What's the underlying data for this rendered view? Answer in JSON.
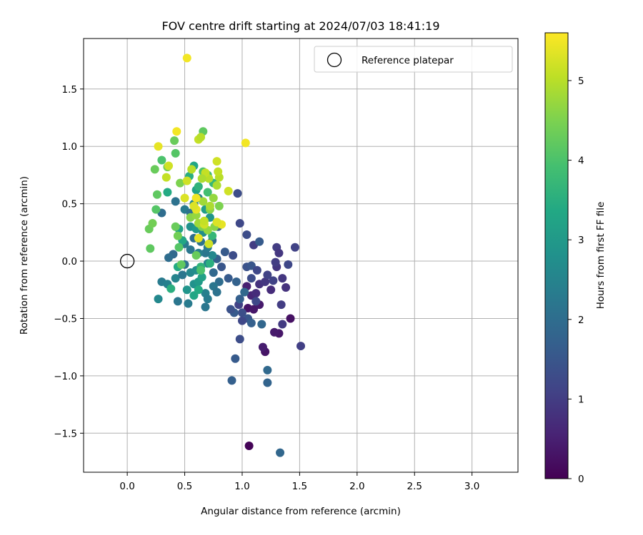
{
  "chart_data": {
    "type": "scatter",
    "title": "FOV centre drift starting at 2024/07/03 18:41:19",
    "xlabel": "Angular distance from reference (arcmin)",
    "ylabel": "Rotation from reference (arcmin)",
    "xlim": [
      -0.38,
      3.4
    ],
    "ylim": [
      -1.84,
      1.94
    ],
    "xticks": [
      0.0,
      0.5,
      1.0,
      1.5,
      2.0,
      2.5,
      3.0
    ],
    "xtick_labels": [
      "0.0",
      "0.5",
      "1.0",
      "1.5",
      "2.0",
      "2.5",
      "3.0"
    ],
    "yticks": [
      1.5,
      1.0,
      0.5,
      0.0,
      -0.5,
      -1.0,
      -1.5
    ],
    "ytick_labels": [
      "1.5",
      "1.0",
      "0.5",
      "0.0",
      "−0.5",
      "−1.0",
      "−1.5"
    ],
    "grid": true,
    "legend": {
      "position": "top-right",
      "entries": [
        "Reference platepar"
      ]
    },
    "reference_point": {
      "x": 0.0,
      "y": 0.0
    },
    "colorbar": {
      "label": "Hours from first FF file",
      "range": [
        0,
        5.6
      ],
      "colormap": "viridis",
      "ticks": [
        0,
        1,
        2,
        3,
        4,
        5
      ],
      "tick_labels": [
        "0",
        "1",
        "2",
        "3",
        "4",
        "5"
      ]
    },
    "series": [
      {
        "points": [
          {
            "x": 1.06,
            "y": -1.61,
            "c": 0.05
          },
          {
            "x": 1.32,
            "y": -0.63,
            "c": 0.35
          },
          {
            "x": 1.28,
            "y": -0.62,
            "c": 0.4
          },
          {
            "x": 1.42,
            "y": -0.5,
            "c": 0.25
          },
          {
            "x": 1.2,
            "y": -0.79,
            "c": 0.3
          },
          {
            "x": 1.18,
            "y": -0.75,
            "c": 0.45
          },
          {
            "x": 1.05,
            "y": -0.41,
            "c": 0.3
          },
          {
            "x": 1.1,
            "y": -0.42,
            "c": 0.35
          },
          {
            "x": 1.15,
            "y": -0.38,
            "c": 0.4
          },
          {
            "x": 1.04,
            "y": -0.22,
            "c": 0.5
          },
          {
            "x": 1.08,
            "y": -0.3,
            "c": 0.6
          },
          {
            "x": 1.12,
            "y": -0.28,
            "c": 0.7
          },
          {
            "x": 1.15,
            "y": -0.2,
            "c": 0.8
          },
          {
            "x": 1.2,
            "y": -0.18,
            "c": 0.9
          },
          {
            "x": 1.25,
            "y": -0.25,
            "c": 0.7
          },
          {
            "x": 1.3,
            "y": -0.05,
            "c": 0.85
          },
          {
            "x": 1.35,
            "y": -0.15,
            "c": 0.9
          },
          {
            "x": 1.38,
            "y": -0.23,
            "c": 0.8
          },
          {
            "x": 1.34,
            "y": -0.38,
            "c": 1.0
          },
          {
            "x": 1.35,
            "y": -0.55,
            "c": 0.95
          },
          {
            "x": 1.4,
            "y": -0.03,
            "c": 1.2
          },
          {
            "x": 1.46,
            "y": 0.12,
            "c": 1.1
          },
          {
            "x": 1.51,
            "y": -0.74,
            "c": 1.05
          },
          {
            "x": 1.3,
            "y": 0.12,
            "c": 1.0
          },
          {
            "x": 1.32,
            "y": 0.07,
            "c": 0.9
          },
          {
            "x": 1.29,
            "y": -0.01,
            "c": 1.0
          },
          {
            "x": 1.22,
            "y": -0.12,
            "c": 1.1
          },
          {
            "x": 1.27,
            "y": -0.17,
            "c": 1.1
          },
          {
            "x": 1.1,
            "y": 0.14,
            "c": 1.0
          },
          {
            "x": 1.15,
            "y": 0.17,
            "c": 1.6
          },
          {
            "x": 1.04,
            "y": 0.23,
            "c": 1.3
          },
          {
            "x": 0.98,
            "y": 0.33,
            "c": 1.2
          },
          {
            "x": 0.96,
            "y": 0.59,
            "c": 1.3
          },
          {
            "x": 1.04,
            "y": -0.05,
            "c": 1.4
          },
          {
            "x": 1.08,
            "y": -0.04,
            "c": 1.5
          },
          {
            "x": 1.13,
            "y": -0.08,
            "c": 1.2
          },
          {
            "x": 1.08,
            "y": -0.15,
            "c": 1.3
          },
          {
            "x": 1.12,
            "y": -0.35,
            "c": 1.2
          },
          {
            "x": 1.0,
            "y": -0.45,
            "c": 1.35
          },
          {
            "x": 1.05,
            "y": -0.5,
            "c": 1.5
          },
          {
            "x": 0.97,
            "y": -0.38,
            "c": 1.1
          },
          {
            "x": 1.0,
            "y": -0.52,
            "c": 1.2
          },
          {
            "x": 0.98,
            "y": -0.33,
            "c": 1.7
          },
          {
            "x": 0.93,
            "y": -0.45,
            "c": 1.6
          },
          {
            "x": 0.9,
            "y": -0.42,
            "c": 1.4
          },
          {
            "x": 0.98,
            "y": -0.68,
            "c": 1.3
          },
          {
            "x": 0.94,
            "y": -0.85,
            "c": 1.6
          },
          {
            "x": 0.91,
            "y": -1.04,
            "c": 1.7
          },
          {
            "x": 1.22,
            "y": -0.95,
            "c": 1.9
          },
          {
            "x": 1.22,
            "y": -1.06,
            "c": 1.8
          },
          {
            "x": 1.33,
            "y": -1.67,
            "c": 1.85
          },
          {
            "x": 1.17,
            "y": -0.55,
            "c": 1.85
          },
          {
            "x": 1.08,
            "y": -0.54,
            "c": 1.7
          },
          {
            "x": 1.02,
            "y": -0.27,
            "c": 1.9
          },
          {
            "x": 0.95,
            "y": -0.18,
            "c": 1.75
          },
          {
            "x": 0.88,
            "y": -0.15,
            "c": 1.6
          },
          {
            "x": 0.82,
            "y": -0.05,
            "c": 1.5
          },
          {
            "x": 0.92,
            "y": 0.05,
            "c": 1.3
          },
          {
            "x": 0.78,
            "y": 0.02,
            "c": 1.7
          },
          {
            "x": 0.75,
            "y": -0.1,
            "c": 1.9
          },
          {
            "x": 0.8,
            "y": -0.18,
            "c": 2.0
          },
          {
            "x": 0.75,
            "y": -0.22,
            "c": 2.2
          },
          {
            "x": 0.78,
            "y": -0.27,
            "c": 2.1
          },
          {
            "x": 0.68,
            "y": -0.28,
            "c": 2.4
          },
          {
            "x": 0.7,
            "y": -0.33,
            "c": 2.3
          },
          {
            "x": 0.68,
            "y": -0.4,
            "c": 2.2
          },
          {
            "x": 0.53,
            "y": -0.37,
            "c": 2.3
          },
          {
            "x": 0.44,
            "y": -0.35,
            "c": 2.2
          },
          {
            "x": 0.27,
            "y": -0.33,
            "c": 2.6
          },
          {
            "x": 0.3,
            "y": -0.18,
            "c": 2.3
          },
          {
            "x": 0.35,
            "y": -0.2,
            "c": 2.4
          },
          {
            "x": 0.42,
            "y": -0.15,
            "c": 2.5
          },
          {
            "x": 0.48,
            "y": -0.12,
            "c": 2.2
          },
          {
            "x": 0.55,
            "y": -0.1,
            "c": 2.6
          },
          {
            "x": 0.5,
            "y": -0.03,
            "c": 2.1
          },
          {
            "x": 0.58,
            "y": -0.2,
            "c": 2.8
          },
          {
            "x": 0.62,
            "y": -0.18,
            "c": 3.0
          },
          {
            "x": 0.52,
            "y": -0.25,
            "c": 2.9
          },
          {
            "x": 0.58,
            "y": -0.3,
            "c": 3.3
          },
          {
            "x": 0.65,
            "y": -0.14,
            "c": 3.2
          },
          {
            "x": 0.6,
            "y": -0.08,
            "c": 2.7
          },
          {
            "x": 0.7,
            "y": -0.02,
            "c": 2.5
          },
          {
            "x": 0.74,
            "y": 0.05,
            "c": 2.6
          },
          {
            "x": 0.68,
            "y": 0.07,
            "c": 2.2
          },
          {
            "x": 0.62,
            "y": 0.07,
            "c": 2.4
          },
          {
            "x": 0.55,
            "y": 0.1,
            "c": 2.2
          },
          {
            "x": 0.5,
            "y": 0.15,
            "c": 2.3
          },
          {
            "x": 0.58,
            "y": 0.2,
            "c": 2.0
          },
          {
            "x": 0.64,
            "y": 0.17,
            "c": 2.1
          },
          {
            "x": 0.7,
            "y": 0.12,
            "c": 2.3
          },
          {
            "x": 0.74,
            "y": 0.18,
            "c": 1.9
          },
          {
            "x": 0.79,
            "y": 0.3,
            "c": 1.8
          },
          {
            "x": 0.85,
            "y": 0.08,
            "c": 1.6
          },
          {
            "x": 0.4,
            "y": 0.06,
            "c": 1.9
          },
          {
            "x": 0.36,
            "y": 0.03,
            "c": 2.0
          },
          {
            "x": 0.3,
            "y": 0.42,
            "c": 2.0
          },
          {
            "x": 0.42,
            "y": 0.52,
            "c": 2.1
          },
          {
            "x": 0.5,
            "y": 0.45,
            "c": 2.3
          },
          {
            "x": 0.55,
            "y": 0.42,
            "c": 2.1
          },
          {
            "x": 0.58,
            "y": 0.5,
            "c": 2.6
          },
          {
            "x": 0.62,
            "y": 0.55,
            "c": 2.5
          },
          {
            "x": 0.55,
            "y": 0.3,
            "c": 2.8
          },
          {
            "x": 0.6,
            "y": 0.28,
            "c": 3.0
          },
          {
            "x": 0.66,
            "y": 0.25,
            "c": 2.7
          },
          {
            "x": 0.72,
            "y": 0.38,
            "c": 2.9
          },
          {
            "x": 0.68,
            "y": 0.45,
            "c": 3.1
          },
          {
            "x": 0.45,
            "y": 0.28,
            "c": 3.2
          },
          {
            "x": 0.48,
            "y": 0.18,
            "c": 3.3
          },
          {
            "x": 0.44,
            "y": -0.05,
            "c": 3.4
          },
          {
            "x": 0.38,
            "y": -0.24,
            "c": 3.5
          },
          {
            "x": 0.62,
            "y": -0.25,
            "c": 3.4
          },
          {
            "x": 0.64,
            "y": -0.05,
            "c": 3.6
          },
          {
            "x": 0.72,
            "y": -0.02,
            "c": 3.5
          },
          {
            "x": 0.74,
            "y": 0.22,
            "c": 3.7
          },
          {
            "x": 0.6,
            "y": 0.62,
            "c": 3.2
          },
          {
            "x": 0.58,
            "y": 0.83,
            "c": 3.3
          },
          {
            "x": 0.54,
            "y": 0.74,
            "c": 3.5
          },
          {
            "x": 0.35,
            "y": 0.6,
            "c": 3.4
          },
          {
            "x": 0.62,
            "y": 0.65,
            "c": 3.6
          },
          {
            "x": 0.7,
            "y": 0.75,
            "c": 3.8
          },
          {
            "x": 0.66,
            "y": 0.78,
            "c": 4.0
          },
          {
            "x": 0.7,
            "y": 0.6,
            "c": 3.9
          },
          {
            "x": 0.75,
            "y": 0.68,
            "c": 3.7
          },
          {
            "x": 0.2,
            "y": 0.11,
            "c": 4.2
          },
          {
            "x": 0.19,
            "y": 0.28,
            "c": 4.3
          },
          {
            "x": 0.22,
            "y": 0.33,
            "c": 4.4
          },
          {
            "x": 0.25,
            "y": 0.45,
            "c": 4.1
          },
          {
            "x": 0.26,
            "y": 0.58,
            "c": 4.2
          },
          {
            "x": 0.24,
            "y": 0.8,
            "c": 4.3
          },
          {
            "x": 0.3,
            "y": 0.88,
            "c": 4.0
          },
          {
            "x": 0.35,
            "y": 0.82,
            "c": 4.4
          },
          {
            "x": 0.42,
            "y": 0.94,
            "c": 4.1
          },
          {
            "x": 0.41,
            "y": 1.05,
            "c": 4.3
          },
          {
            "x": 0.66,
            "y": 1.13,
            "c": 4.2
          },
          {
            "x": 0.46,
            "y": 0.68,
            "c": 4.5
          },
          {
            "x": 0.44,
            "y": 0.22,
            "c": 4.4
          },
          {
            "x": 0.42,
            "y": 0.3,
            "c": 4.3
          },
          {
            "x": 0.45,
            "y": 0.12,
            "c": 4.1
          },
          {
            "x": 0.47,
            "y": -0.03,
            "c": 4.2
          },
          {
            "x": 0.6,
            "y": 0.05,
            "c": 4.3
          },
          {
            "x": 0.64,
            "y": -0.08,
            "c": 4.0
          },
          {
            "x": 0.65,
            "y": 0.3,
            "c": 4.5
          },
          {
            "x": 0.55,
            "y": 0.38,
            "c": 4.6
          },
          {
            "x": 0.6,
            "y": 0.4,
            "c": 4.7
          },
          {
            "x": 0.72,
            "y": 0.45,
            "c": 4.6
          },
          {
            "x": 0.76,
            "y": 0.3,
            "c": 4.6
          },
          {
            "x": 0.8,
            "y": 0.48,
            "c": 4.5
          },
          {
            "x": 0.7,
            "y": 0.27,
            "c": 4.7
          },
          {
            "x": 0.62,
            "y": 0.33,
            "c": 4.8
          },
          {
            "x": 0.66,
            "y": 0.52,
            "c": 4.8
          },
          {
            "x": 0.72,
            "y": 0.48,
            "c": 4.9
          },
          {
            "x": 0.75,
            "y": 0.55,
            "c": 4.7
          },
          {
            "x": 0.78,
            "y": 0.66,
            "c": 4.9
          },
          {
            "x": 0.8,
            "y": 0.73,
            "c": 5.0
          },
          {
            "x": 0.79,
            "y": 0.78,
            "c": 5.1
          },
          {
            "x": 0.78,
            "y": 0.87,
            "c": 5.2
          },
          {
            "x": 0.71,
            "y": 0.72,
            "c": 5.0
          },
          {
            "x": 0.68,
            "y": 0.77,
            "c": 5.1
          },
          {
            "x": 0.65,
            "y": 0.72,
            "c": 4.9
          },
          {
            "x": 0.62,
            "y": 1.06,
            "c": 5.1
          },
          {
            "x": 0.64,
            "y": 1.08,
            "c": 5.0
          },
          {
            "x": 0.52,
            "y": 0.7,
            "c": 5.2
          },
          {
            "x": 0.56,
            "y": 0.8,
            "c": 5.0
          },
          {
            "x": 0.88,
            "y": 0.61,
            "c": 5.2
          },
          {
            "x": 0.34,
            "y": 0.73,
            "c": 5.1
          },
          {
            "x": 0.36,
            "y": 0.83,
            "c": 5.2
          },
          {
            "x": 0.27,
            "y": 1.0,
            "c": 5.4
          },
          {
            "x": 0.43,
            "y": 1.13,
            "c": 5.5
          },
          {
            "x": 1.03,
            "y": 1.03,
            "c": 5.5
          },
          {
            "x": 0.52,
            "y": 1.77,
            "c": 5.5
          },
          {
            "x": 0.5,
            "y": 0.55,
            "c": 5.3
          },
          {
            "x": 0.6,
            "y": 0.55,
            "c": 5.5
          },
          {
            "x": 0.6,
            "y": 0.45,
            "c": 5.4
          },
          {
            "x": 0.62,
            "y": 0.2,
            "c": 5.4
          },
          {
            "x": 0.67,
            "y": 0.32,
            "c": 5.2
          },
          {
            "x": 0.82,
            "y": 0.32,
            "c": 5.4
          },
          {
            "x": 0.78,
            "y": 0.34,
            "c": 5.3
          },
          {
            "x": 0.71,
            "y": 0.15,
            "c": 5.2
          },
          {
            "x": 0.67,
            "y": 0.35,
            "c": 5.1
          },
          {
            "x": 0.58,
            "y": 0.48,
            "c": 5.3
          }
        ]
      }
    ]
  }
}
